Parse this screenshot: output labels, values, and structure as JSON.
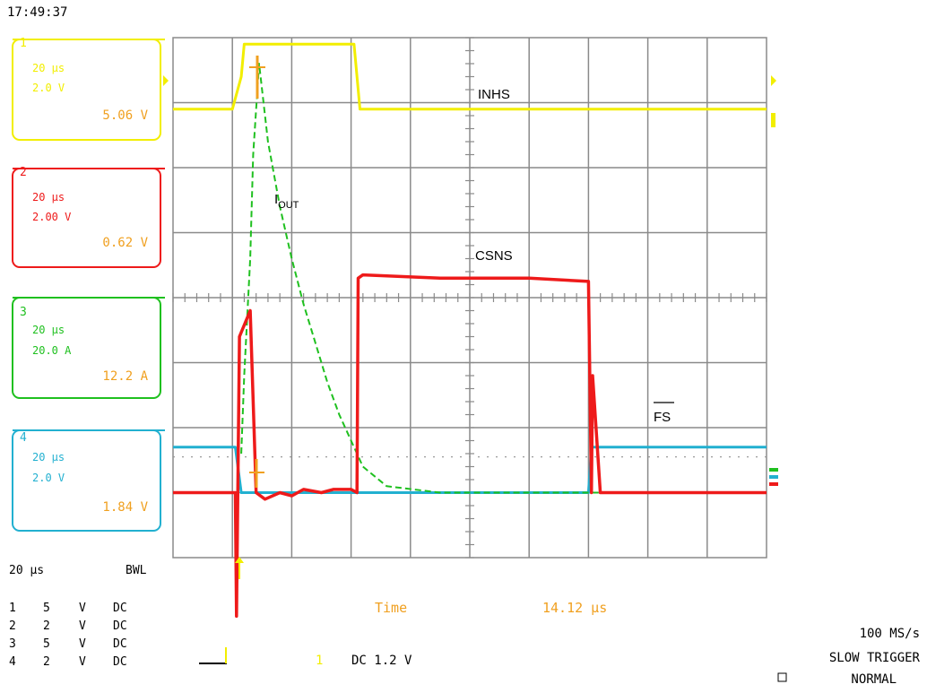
{
  "header": {
    "timestamp": "17:49:37"
  },
  "colors": {
    "ch1": "#f2ee00",
    "ch2": "#ee1a1a",
    "ch3": "#1fc01f",
    "ch4": "#22b0d0",
    "orange": "#f0a020",
    "grid": "#8a8a8a",
    "text": "#000000"
  },
  "channels": [
    {
      "id": "1",
      "line1": "20 µs",
      "line2": "2.0 V",
      "value": "5.06 V"
    },
    {
      "id": "2",
      "line1": "20 µs",
      "line2": "2.00 V",
      "value": "0.62 V"
    },
    {
      "id": "3",
      "line1": "20 µs",
      "line2": "20.0 A",
      "value": "12.2 A"
    },
    {
      "id": "4",
      "line1": "20 µs",
      "line2": "2.0 V",
      "value": "1.84 V"
    }
  ],
  "labels": {
    "inhs": "INHS",
    "iout_main": "I",
    "iout_sub": "OUT",
    "csns": "CSNS",
    "fs": "FS"
  },
  "footer": {
    "timebase": "20 µs",
    "bwl": "BWL",
    "ch_settings": [
      {
        "num": "1",
        "scale": "5",
        "unit": "V",
        "coupling": "DC"
      },
      {
        "num": "2",
        "scale": "2",
        "unit": "V",
        "coupling": "DC"
      },
      {
        "num": "3",
        "scale": "5",
        "unit": "V",
        "coupling": "DC"
      },
      {
        "num": "4",
        "scale": "2",
        "unit": "V",
        "coupling": "DC"
      }
    ],
    "time_label": "Time",
    "time_value": "14.12 µs",
    "trigger_channel": "1",
    "trigger_level": "DC 1.2 V",
    "sample_rate": "100 MS/s",
    "trigger_mode": "SLOW TRIGGER",
    "acq_mode": "NORMAL"
  },
  "chart_data": {
    "type": "line",
    "xlabel": "",
    "ylabel": "",
    "grid": true,
    "x_divisions": 10,
    "y_divisions": 8,
    "x_unit": "div",
    "y_unit": "div",
    "xlim": [
      0,
      10
    ],
    "ylim": [
      0,
      8
    ],
    "series": [
      {
        "name": "INHS",
        "x": [
          0,
          1.0,
          1.15,
          1.2,
          3.05,
          3.15,
          10
        ],
        "y": [
          6.9,
          6.9,
          7.4,
          7.9,
          7.9,
          6.9,
          6.9
        ]
      },
      {
        "name": "IOUT",
        "x": [
          1.15,
          1.2,
          1.3,
          1.35,
          1.45,
          1.6,
          1.8,
          2.0,
          2.2,
          2.4,
          2.6,
          2.8,
          3.0,
          3.2,
          3.6,
          4.5,
          6.0,
          7.0,
          8.0,
          9.0,
          10
        ],
        "y": [
          1.6,
          2.8,
          4.6,
          6.2,
          7.6,
          6.4,
          5.4,
          4.6,
          3.9,
          3.3,
          2.7,
          2.2,
          1.8,
          1.4,
          1.1,
          1.0,
          1.0,
          1.0,
          1.0,
          1.0,
          1.0
        ]
      },
      {
        "name": "CSNS",
        "x": [
          0,
          1.05,
          1.07,
          1.12,
          1.3,
          1.4,
          1.55,
          1.8,
          2.0,
          2.2,
          2.5,
          2.7,
          3.0,
          3.1,
          3.12,
          3.2,
          4.5,
          6.0,
          7.0,
          7.05,
          7.07,
          7.2,
          8.0,
          9.0,
          10
        ],
        "y": [
          1.0,
          1.0,
          -0.9,
          3.4,
          3.8,
          1.0,
          0.9,
          1.0,
          0.95,
          1.05,
          1.0,
          1.05,
          1.05,
          1.0,
          4.3,
          4.35,
          4.3,
          4.3,
          4.25,
          1.0,
          2.8,
          1.0,
          1.0,
          1.0,
          1.0
        ]
      },
      {
        "name": "FS",
        "x": [
          0,
          1.05,
          1.15,
          1.3,
          1.4,
          3.0,
          4.5,
          6.0,
          7.0,
          7.05,
          8.0,
          9.0,
          10
        ],
        "y": [
          1.7,
          1.7,
          1.0,
          1.0,
          1.0,
          1.0,
          1.0,
          1.0,
          1.0,
          1.7,
          1.7,
          1.7,
          1.7
        ]
      }
    ]
  }
}
